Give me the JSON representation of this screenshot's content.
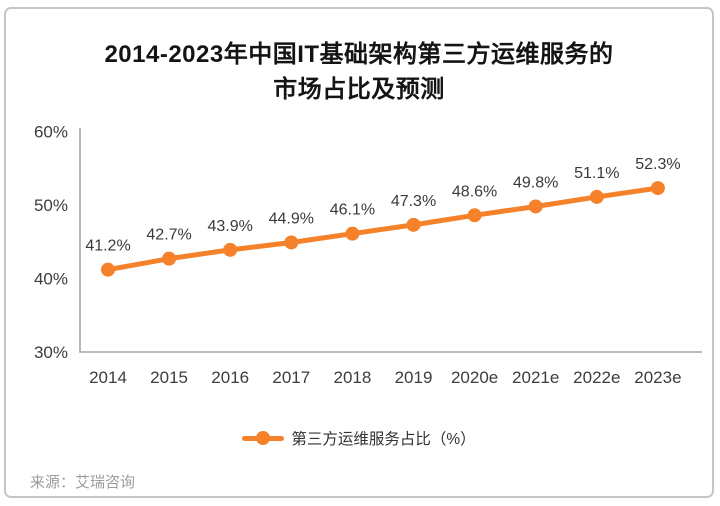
{
  "colors": {
    "line": "#F5812A",
    "axis": "#A6A6A6",
    "tick_label": "#3D3D3D",
    "title": "#141414",
    "border": "#C6C6C6",
    "source": "#9C9C9C"
  },
  "card": {
    "source": "来源：艾瑞咨询"
  },
  "legend": {
    "label": "第三方运维服务占比（%）"
  },
  "chart_data": {
    "type": "line",
    "title": "2014-2023年中国IT基础架构第三方运维服务的市场占比及预测",
    "title_lines": [
      "2014-2023年中国IT基础架构第三方运维服务的",
      "市场占比及预测"
    ],
    "categories": [
      "2014",
      "2015",
      "2016",
      "2017",
      "2018",
      "2019",
      "2020e",
      "2021e",
      "2022e",
      "2023e"
    ],
    "series": [
      {
        "name": "第三方运维服务占比（%）",
        "values": [
          41.2,
          42.7,
          43.9,
          44.9,
          46.1,
          47.3,
          48.6,
          49.8,
          51.1,
          52.3
        ]
      }
    ],
    "data_labels": [
      "41.2%",
      "42.7%",
      "43.9%",
      "44.9%",
      "46.1%",
      "47.3%",
      "48.6%",
      "49.8%",
      "51.1%",
      "52.3%"
    ],
    "xlabel": "",
    "ylabel": "",
    "ylim": [
      30,
      60
    ],
    "ytick_values": [
      30,
      40,
      50,
      60
    ],
    "yticks": [
      "30%",
      "40%",
      "50%",
      "60%"
    ],
    "grid": false,
    "legend_position": "bottom"
  }
}
